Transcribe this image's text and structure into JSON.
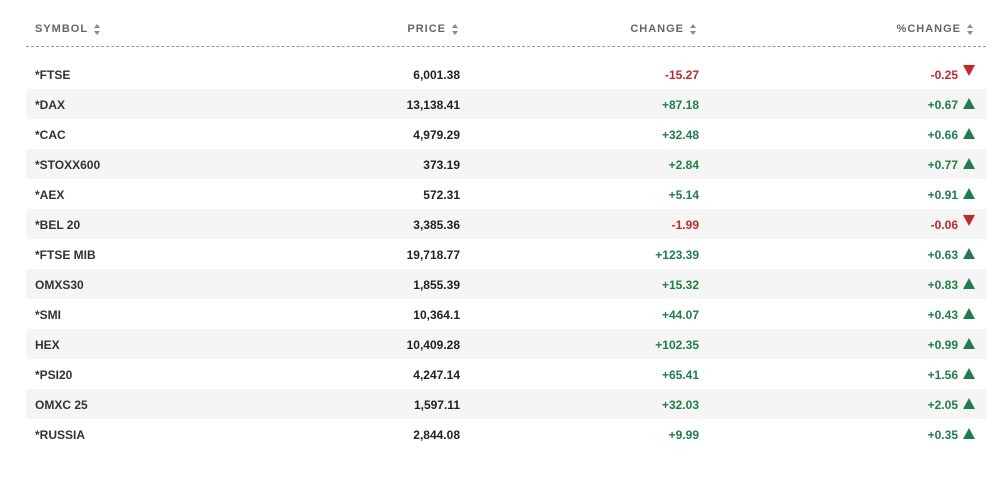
{
  "header": {
    "symbol": "SYMBOL",
    "price": "PRICE",
    "change": "CHANGE",
    "pct_change": "%CHANGE"
  },
  "colors": {
    "positive": "#1e7f4a",
    "negative": "#c62828"
  },
  "rows": [
    {
      "symbol": "*FTSE",
      "price": "6,001.38",
      "change": "-15.27",
      "pct": "-0.25",
      "direction": "down"
    },
    {
      "symbol": "*DAX",
      "price": "13,138.41",
      "change": "+87.18",
      "pct": "+0.67",
      "direction": "up"
    },
    {
      "symbol": "*CAC",
      "price": "4,979.29",
      "change": "+32.48",
      "pct": "+0.66",
      "direction": "up"
    },
    {
      "symbol": "*STOXX600",
      "price": "373.19",
      "change": "+2.84",
      "pct": "+0.77",
      "direction": "up"
    },
    {
      "symbol": "*AEX",
      "price": "572.31",
      "change": "+5.14",
      "pct": "+0.91",
      "direction": "up"
    },
    {
      "symbol": "*BEL 20",
      "price": "3,385.36",
      "change": "-1.99",
      "pct": "-0.06",
      "direction": "down"
    },
    {
      "symbol": "*FTSE MIB",
      "price": "19,718.77",
      "change": "+123.39",
      "pct": "+0.63",
      "direction": "up"
    },
    {
      "symbol": "OMXS30",
      "price": "1,855.39",
      "change": "+15.32",
      "pct": "+0.83",
      "direction": "up"
    },
    {
      "symbol": "*SMI",
      "price": "10,364.1",
      "change": "+44.07",
      "pct": "+0.43",
      "direction": "up"
    },
    {
      "symbol": "HEX",
      "price": "10,409.28",
      "change": "+102.35",
      "pct": "+0.99",
      "direction": "up"
    },
    {
      "symbol": "*PSI20",
      "price": "4,247.14",
      "change": "+65.41",
      "pct": "+1.56",
      "direction": "up"
    },
    {
      "symbol": "OMXC 25",
      "price": "1,597.11",
      "change": "+32.03",
      "pct": "+2.05",
      "direction": "up"
    },
    {
      "symbol": "*RUSSIA",
      "price": "2,844.08",
      "change": "+9.99",
      "pct": "+0.35",
      "direction": "up"
    }
  ]
}
